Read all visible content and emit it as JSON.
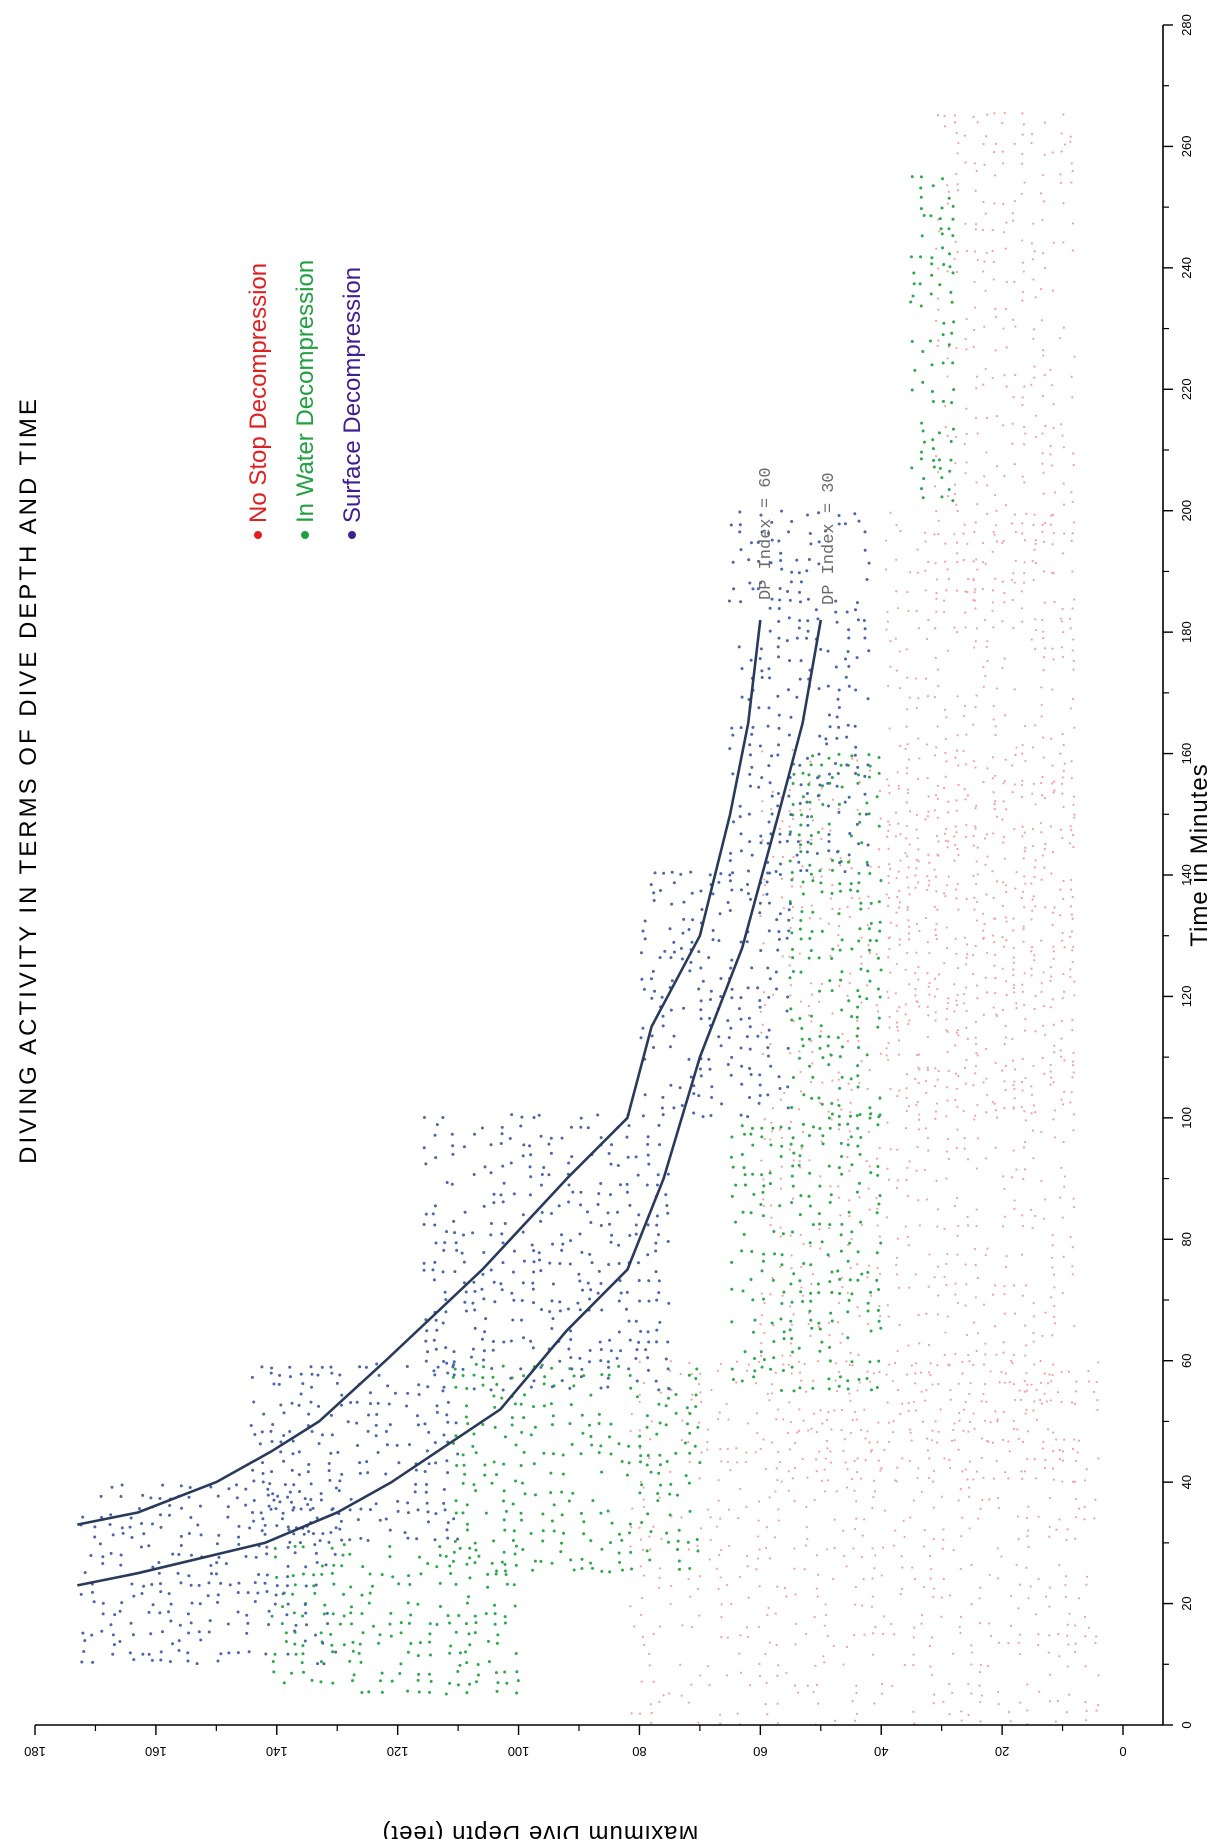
{
  "chart_data": {
    "type": "scatter",
    "title": "DIVING ACTIVITY IN TERMS OF DIVE DEPTH AND TIME",
    "xlabel": "Time in Minutes",
    "ylabel": "Maximum Dive Depth (feet)",
    "xlim": [
      0,
      280
    ],
    "ylim": [
      0,
      180
    ],
    "x_ticks": [
      "0",
      "20",
      "40",
      "60",
      "80",
      "100",
      "120",
      "140",
      "160",
      "180",
      "200",
      "220",
      "240",
      "260",
      "280"
    ],
    "y_ticks": [
      "0",
      "20",
      "40",
      "60",
      "80",
      "100",
      "120",
      "140",
      "160",
      "180"
    ],
    "grid": false,
    "legend_position": "upper-left",
    "series": [
      {
        "name": "No Stop Decompression",
        "color": "#f2a0a0",
        "legend_color": "#e02020",
        "marker": "dot",
        "regions": [
          {
            "x_min": 0,
            "x_max": 60,
            "y_min": 4,
            "y_max": 82
          },
          {
            "x_min": 40,
            "x_max": 160,
            "y_min": 8,
            "y_max": 60
          },
          {
            "x_min": 100,
            "x_max": 200,
            "y_min": 8,
            "y_max": 40
          },
          {
            "x_min": 180,
            "x_max": 265,
            "y_min": 8,
            "y_max": 32
          }
        ]
      },
      {
        "name": "In Water Decompression",
        "color": "#2fa84a",
        "legend_color": "#20a040",
        "marker": "dot",
        "regions": [
          {
            "x_min": 5,
            "x_max": 30,
            "y_min": 100,
            "y_max": 140
          },
          {
            "x_min": 25,
            "x_max": 60,
            "y_min": 70,
            "y_max": 110
          },
          {
            "x_min": 55,
            "x_max": 100,
            "y_min": 40,
            "y_max": 65
          },
          {
            "x_min": 100,
            "x_max": 160,
            "y_min": 40,
            "y_max": 55
          },
          {
            "x_min": 200,
            "x_max": 255,
            "y_min": 28,
            "y_max": 36
          }
        ]
      },
      {
        "name": "Surface Decompression",
        "color": "#4a68a8",
        "legend_color": "#402090",
        "marker": "dot",
        "regions": [
          {
            "x_min": 10,
            "x_max": 40,
            "y_min": 130,
            "y_max": 172
          },
          {
            "x_min": 30,
            "x_max": 60,
            "y_min": 110,
            "y_max": 145
          },
          {
            "x_min": 55,
            "x_max": 100,
            "y_min": 75,
            "y_max": 115
          },
          {
            "x_min": 100,
            "x_max": 140,
            "y_min": 55,
            "y_max": 80
          },
          {
            "x_min": 140,
            "x_max": 200,
            "y_min": 42,
            "y_max": 65
          }
        ]
      }
    ],
    "curves": [
      {
        "label": "DP Index = 60",
        "color": "#2a3a5a",
        "points": [
          [
            33,
            173
          ],
          [
            35,
            163
          ],
          [
            40,
            150
          ],
          [
            45,
            141
          ],
          [
            50,
            133
          ],
          [
            60,
            122
          ],
          [
            75,
            106
          ],
          [
            90,
            92
          ],
          [
            100,
            82
          ],
          [
            115,
            78
          ],
          [
            130,
            70
          ],
          [
            150,
            65
          ],
          [
            165,
            62
          ],
          [
            182,
            60
          ]
        ]
      },
      {
        "label": "DP Index = 30",
        "color": "#2a3a5a",
        "points": [
          [
            23,
            173
          ],
          [
            25,
            163
          ],
          [
            30,
            142
          ],
          [
            35,
            130
          ],
          [
            40,
            121
          ],
          [
            52,
            103
          ],
          [
            65,
            92
          ],
          [
            75,
            82
          ],
          [
            90,
            76
          ],
          [
            110,
            70
          ],
          [
            128,
            63
          ],
          [
            150,
            57
          ],
          [
            165,
            53
          ],
          [
            182,
            50
          ]
        ]
      }
    ]
  }
}
